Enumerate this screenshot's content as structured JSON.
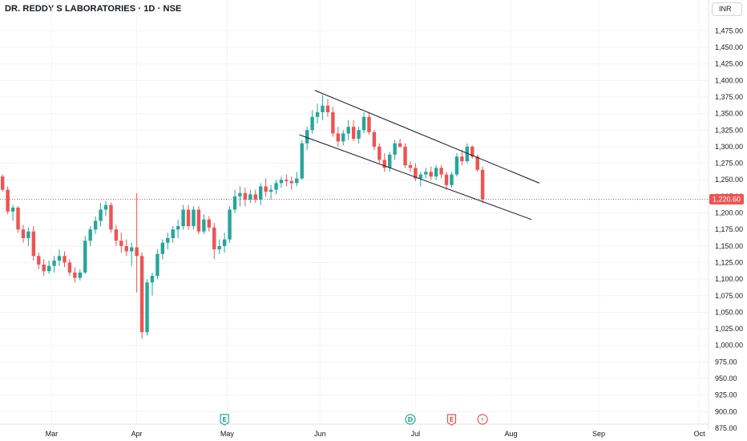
{
  "header": {
    "symbol_title": "DR. REDDY S LABORATORIES · 1D · NSE"
  },
  "currency_button": {
    "label": "INR"
  },
  "chart_data": {
    "type": "candlestick",
    "ylim": [
      875,
      1490
    ],
    "y_ticks": [
      875,
      900,
      925,
      950,
      975,
      1000,
      1025,
      1050,
      1075,
      1100,
      1125,
      1150,
      1175,
      1200,
      1225,
      1250,
      1275,
      1300,
      1325,
      1350,
      1375,
      1400,
      1425,
      1450,
      1475
    ],
    "y_tick_labels": [
      "875.00",
      "900.00",
      "925.00",
      "950.00",
      "975.00",
      "1,000.00",
      "1,025.00",
      "1,050.00",
      "1,075.00",
      "1,100.00",
      "1,125.00",
      "1,150.00",
      "1,175.00",
      "1,200.00",
      "1,225.00",
      "1,250.00",
      "1,275.00",
      "1,300.00",
      "1,325.00",
      "1,350.00",
      "1,375.00",
      "1,400.00",
      "1,425.00",
      "1,450.00",
      "1,475.00"
    ],
    "x_ticks": [
      "Mar",
      "Apr",
      "May",
      "Jun",
      "Jul",
      "Aug",
      "Sep",
      "Oct"
    ],
    "x_tick_index": [
      9.5,
      26,
      43.5,
      61.5,
      80,
      98.5,
      115.5,
      135
    ],
    "last_price": 1220.6,
    "last_price_label": "1,220.60",
    "colors": {
      "up": "#26a69a",
      "down": "#ef5350",
      "line": "#131722",
      "grid": "#f0f3fa"
    },
    "candles": [
      [
        1255,
        1258,
        1232,
        1235
      ],
      [
        1235,
        1240,
        1198,
        1202
      ],
      [
        1202,
        1212,
        1188,
        1208
      ],
      [
        1208,
        1210,
        1170,
        1175
      ],
      [
        1175,
        1182,
        1155,
        1162
      ],
      [
        1162,
        1178,
        1150,
        1172
      ],
      [
        1172,
        1180,
        1128,
        1135
      ],
      [
        1135,
        1140,
        1115,
        1122
      ],
      [
        1122,
        1130,
        1105,
        1112
      ],
      [
        1112,
        1128,
        1108,
        1120
      ],
      [
        1120,
        1135,
        1110,
        1128
      ],
      [
        1128,
        1145,
        1120,
        1135
      ],
      [
        1135,
        1142,
        1118,
        1125
      ],
      [
        1125,
        1130,
        1105,
        1110
      ],
      [
        1110,
        1118,
        1095,
        1102
      ],
      [
        1102,
        1115,
        1098,
        1110
      ],
      [
        1110,
        1165,
        1108,
        1158
      ],
      [
        1158,
        1180,
        1150,
        1175
      ],
      [
        1175,
        1195,
        1168,
        1188
      ],
      [
        1188,
        1215,
        1180,
        1205
      ],
      [
        1205,
        1218,
        1195,
        1212
      ],
      [
        1212,
        1216,
        1170,
        1175
      ],
      [
        1175,
        1182,
        1150,
        1158
      ],
      [
        1158,
        1170,
        1140,
        1150
      ],
      [
        1150,
        1160,
        1135,
        1142
      ],
      [
        1142,
        1155,
        1120,
        1148
      ],
      [
        1148,
        1230,
        1080,
        1135
      ],
      [
        1135,
        1140,
        1010,
        1020
      ],
      [
        1020,
        1100,
        1015,
        1095
      ],
      [
        1095,
        1110,
        1075,
        1105
      ],
      [
        1105,
        1145,
        1100,
        1138
      ],
      [
        1138,
        1160,
        1130,
        1155
      ],
      [
        1155,
        1170,
        1145,
        1162
      ],
      [
        1162,
        1180,
        1155,
        1175
      ],
      [
        1175,
        1190,
        1162,
        1180
      ],
      [
        1180,
        1212,
        1175,
        1205
      ],
      [
        1205,
        1212,
        1175,
        1180
      ],
      [
        1180,
        1210,
        1175,
        1205
      ],
      [
        1205,
        1210,
        1168,
        1172
      ],
      [
        1172,
        1198,
        1168,
        1190
      ],
      [
        1190,
        1195,
        1172,
        1178
      ],
      [
        1178,
        1185,
        1130,
        1145
      ],
      [
        1145,
        1160,
        1138,
        1150
      ],
      [
        1150,
        1170,
        1140,
        1160
      ],
      [
        1160,
        1210,
        1155,
        1205
      ],
      [
        1205,
        1235,
        1200,
        1225
      ],
      [
        1225,
        1240,
        1210,
        1230
      ],
      [
        1230,
        1238,
        1210,
        1220
      ],
      [
        1220,
        1235,
        1215,
        1228
      ],
      [
        1228,
        1235,
        1215,
        1220
      ],
      [
        1220,
        1245,
        1212,
        1240
      ],
      [
        1240,
        1252,
        1225,
        1232
      ],
      [
        1232,
        1242,
        1220,
        1235
      ],
      [
        1235,
        1250,
        1228,
        1245
      ],
      [
        1245,
        1255,
        1238,
        1250
      ],
      [
        1250,
        1258,
        1240,
        1248
      ],
      [
        1248,
        1255,
        1235,
        1245
      ],
      [
        1245,
        1262,
        1240,
        1252
      ],
      [
        1252,
        1310,
        1250,
        1305
      ],
      [
        1305,
        1330,
        1295,
        1325
      ],
      [
        1325,
        1355,
        1320,
        1345
      ],
      [
        1345,
        1365,
        1335,
        1352
      ],
      [
        1352,
        1378,
        1340,
        1362
      ],
      [
        1362,
        1372,
        1345,
        1352
      ],
      [
        1352,
        1360,
        1315,
        1320
      ],
      [
        1320,
        1330,
        1300,
        1308
      ],
      [
        1308,
        1325,
        1302,
        1320
      ],
      [
        1320,
        1340,
        1310,
        1330
      ],
      [
        1330,
        1340,
        1308,
        1312
      ],
      [
        1312,
        1330,
        1305,
        1325
      ],
      [
        1325,
        1352,
        1320,
        1345
      ],
      [
        1345,
        1352,
        1318,
        1322
      ],
      [
        1322,
        1325,
        1295,
        1300
      ],
      [
        1300,
        1305,
        1275,
        1280
      ],
      [
        1280,
        1290,
        1262,
        1268
      ],
      [
        1268,
        1292,
        1262,
        1288
      ],
      [
        1288,
        1310,
        1280,
        1305
      ],
      [
        1305,
        1312,
        1298,
        1300
      ],
      [
        1300,
        1305,
        1268,
        1272
      ],
      [
        1272,
        1278,
        1262,
        1268
      ],
      [
        1268,
        1275,
        1248,
        1252
      ],
      [
        1252,
        1262,
        1240,
        1258
      ],
      [
        1258,
        1268,
        1252,
        1262
      ],
      [
        1262,
        1270,
        1250,
        1255
      ],
      [
        1255,
        1272,
        1250,
        1268
      ],
      [
        1268,
        1272,
        1252,
        1258
      ],
      [
        1258,
        1262,
        1235,
        1242
      ],
      [
        1242,
        1262,
        1238,
        1258
      ],
      [
        1258,
        1290,
        1255,
        1285
      ],
      [
        1285,
        1295,
        1272,
        1278
      ],
      [
        1278,
        1305,
        1275,
        1300
      ],
      [
        1300,
        1302,
        1282,
        1285
      ],
      [
        1285,
        1288,
        1262,
        1265
      ],
      [
        1265,
        1270,
        1215,
        1220.6
      ]
    ],
    "trendlines": [
      {
        "start_index": 60.5,
        "start_value": 1385,
        "end_index": 104,
        "end_value": 1245
      },
      {
        "start_index": 57.5,
        "start_value": 1318,
        "end_index": 102.5,
        "end_value": 1190
      }
    ],
    "event_markers": [
      {
        "glyph": "E",
        "kind": "earnings",
        "index": 43,
        "color": "#26a69a"
      },
      {
        "glyph": "D",
        "kind": "dividend",
        "index": 79,
        "color": "#26a69a"
      },
      {
        "glyph": "E",
        "kind": "earnings",
        "index": 87,
        "color": "#ef5350"
      },
      {
        "glyph": "⚡",
        "kind": "split",
        "index": 93,
        "color": "#ef5350"
      }
    ]
  }
}
